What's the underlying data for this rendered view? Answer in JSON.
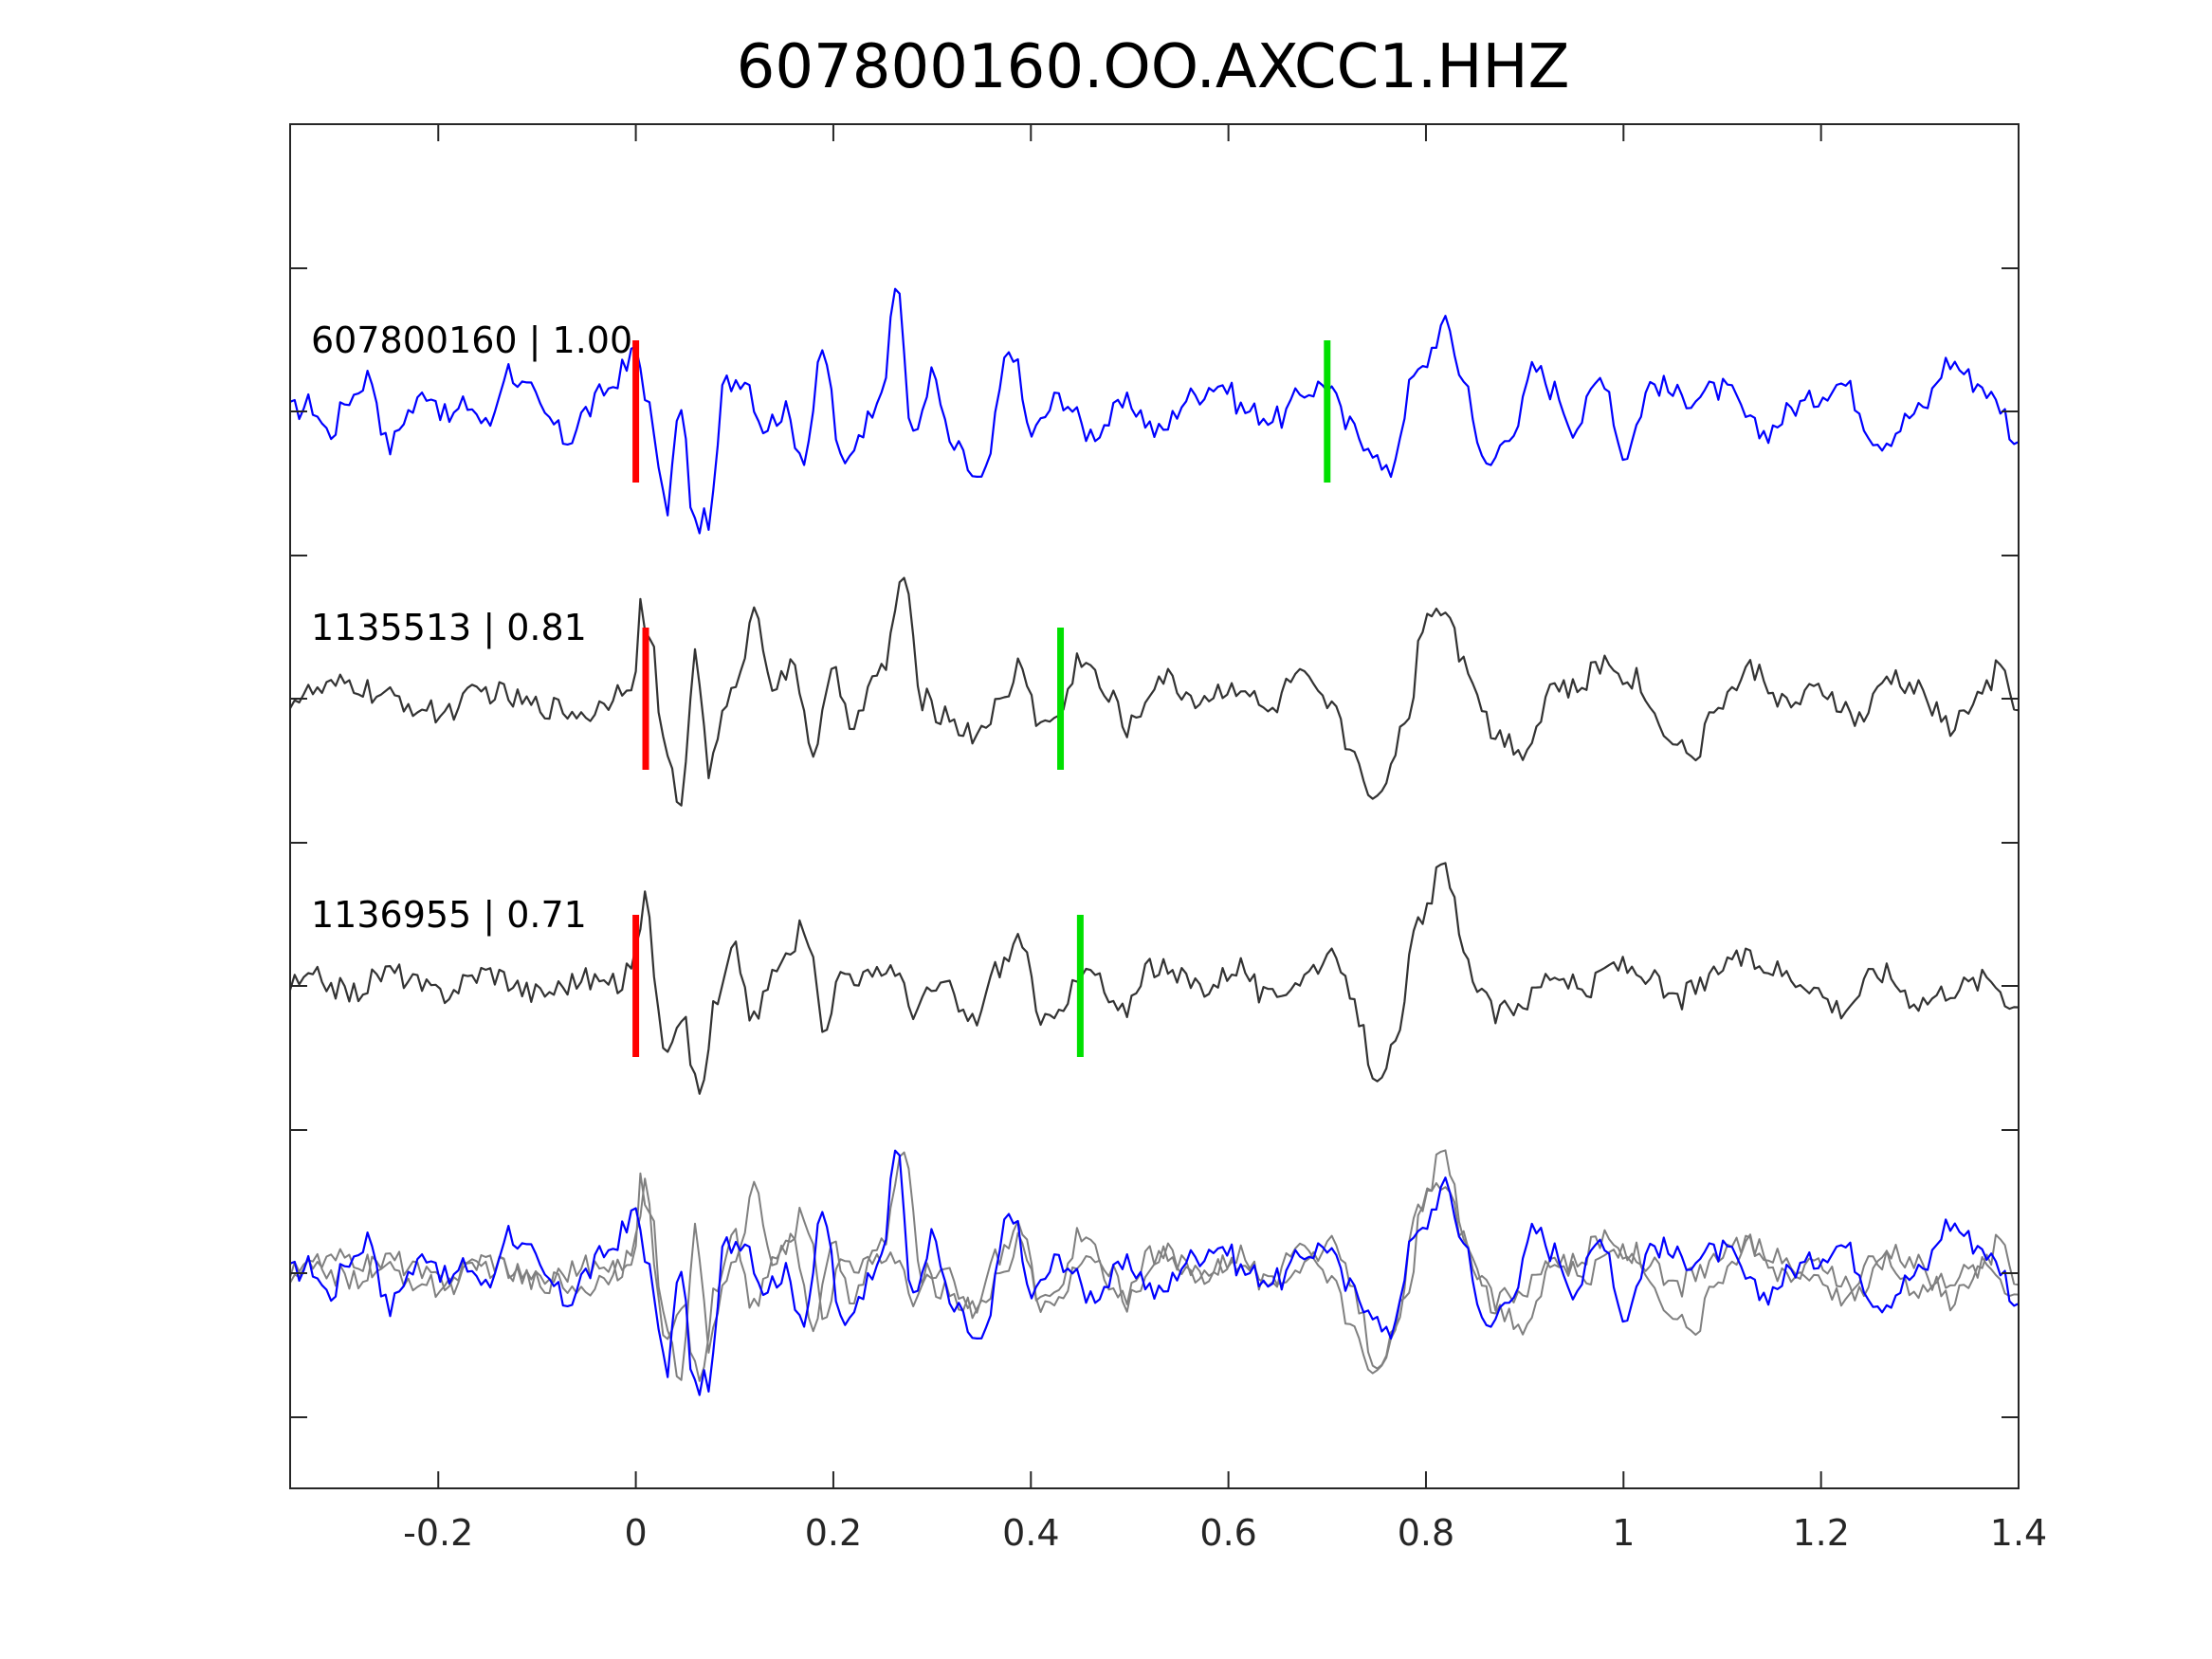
{
  "chart_data": {
    "type": "line",
    "title": "607800160.OO.AXCC1.HHZ",
    "xlabel": "",
    "ylabel": "",
    "xlim": [
      -0.35,
      1.4
    ],
    "x_ticks": [
      "-0.2",
      "0",
      "0.2",
      "0.4",
      "0.6",
      "0.8",
      "1",
      "1.2",
      "1.4"
    ],
    "x_tick_values": [
      -0.2,
      0,
      0.2,
      0.4,
      0.6,
      0.8,
      1.0,
      1.2,
      1.4
    ],
    "grid": false,
    "series": [
      {
        "label": "607800160 | 1.00",
        "color": "#0000ff",
        "p_pick": 0.0,
        "s_pick": 0.7,
        "keypoints": [
          [
            -0.35,
            0.0
          ],
          [
            -0.33,
            0.1
          ],
          [
            -0.31,
            -0.3
          ],
          [
            -0.29,
            0.2
          ],
          [
            -0.27,
            0.5
          ],
          [
            -0.25,
            -0.5
          ],
          [
            -0.23,
            0.0
          ],
          [
            -0.21,
            0.3
          ],
          [
            -0.19,
            -0.1
          ],
          [
            -0.17,
            0.1
          ],
          [
            -0.15,
            -0.2
          ],
          [
            -0.13,
            0.6
          ],
          [
            -0.11,
            0.3
          ],
          [
            -0.09,
            -0.1
          ],
          [
            -0.07,
            -0.4
          ],
          [
            -0.05,
            0.0
          ],
          [
            -0.03,
            0.3
          ],
          [
            -0.01,
            0.6
          ],
          [
            0.0,
            0.9
          ],
          [
            0.01,
            0.3
          ],
          [
            0.02,
            -0.5
          ],
          [
            0.03,
            -1.4
          ],
          [
            0.045,
            0.0
          ],
          [
            0.06,
            -1.6
          ],
          [
            0.075,
            -1.5
          ],
          [
            0.09,
            0.4
          ],
          [
            0.11,
            0.5
          ],
          [
            0.13,
            -0.2
          ],
          [
            0.15,
            0.0
          ],
          [
            0.17,
            -0.6
          ],
          [
            0.19,
            0.8
          ],
          [
            0.21,
            -0.8
          ],
          [
            0.23,
            -0.2
          ],
          [
            0.25,
            0.4
          ],
          [
            0.265,
            1.8
          ],
          [
            0.28,
            -0.4
          ],
          [
            0.3,
            0.5
          ],
          [
            0.32,
            -0.5
          ],
          [
            0.35,
            -1.0
          ],
          [
            0.38,
            0.9
          ],
          [
            0.4,
            -0.3
          ],
          [
            0.43,
            0.2
          ],
          [
            0.46,
            -0.3
          ],
          [
            0.5,
            0.1
          ],
          [
            0.53,
            -0.3
          ],
          [
            0.56,
            0.2
          ],
          [
            0.59,
            0.4
          ],
          [
            0.62,
            0.0
          ],
          [
            0.65,
            -0.1
          ],
          [
            0.68,
            0.3
          ],
          [
            0.7,
            0.4
          ],
          [
            0.72,
            -0.2
          ],
          [
            0.74,
            -0.4
          ],
          [
            0.76,
            -0.9
          ],
          [
            0.79,
            0.5
          ],
          [
            0.82,
            1.2
          ],
          [
            0.84,
            0.4
          ],
          [
            0.86,
            -0.8
          ],
          [
            0.89,
            -0.2
          ],
          [
            0.91,
            0.6
          ],
          [
            0.93,
            0.3
          ],
          [
            0.95,
            -0.2
          ],
          [
            0.98,
            0.5
          ],
          [
            1.0,
            -0.6
          ],
          [
            1.03,
            0.4
          ],
          [
            1.06,
            0.2
          ],
          [
            1.1,
            0.3
          ],
          [
            1.14,
            -0.3
          ],
          [
            1.18,
            0.1
          ],
          [
            1.22,
            0.4
          ],
          [
            1.26,
            -0.4
          ],
          [
            1.3,
            0.0
          ],
          [
            1.33,
            0.7
          ],
          [
            1.36,
            0.4
          ],
          [
            1.38,
            0.1
          ],
          [
            1.4,
            -0.5
          ]
        ]
      },
      {
        "label": "1135513 | 0.81",
        "color": "#333333",
        "p_pick": 0.01,
        "s_pick": 0.43,
        "keypoints": [
          [
            -0.35,
            0.0
          ],
          [
            -0.32,
            0.1
          ],
          [
            -0.29,
            0.2
          ],
          [
            -0.25,
            0.0
          ],
          [
            -0.2,
            -0.2
          ],
          [
            -0.15,
            0.1
          ],
          [
            -0.1,
            -0.1
          ],
          [
            -0.05,
            -0.2
          ],
          [
            0.0,
            0.3
          ],
          [
            0.005,
            1.3
          ],
          [
            0.015,
            0.8
          ],
          [
            0.03,
            -0.8
          ],
          [
            0.045,
            -1.5
          ],
          [
            0.06,
            0.6
          ],
          [
            0.075,
            -1.0
          ],
          [
            0.09,
            -0.2
          ],
          [
            0.11,
            0.6
          ],
          [
            0.12,
            1.3
          ],
          [
            0.14,
            0.2
          ],
          [
            0.16,
            0.4
          ],
          [
            0.18,
            -0.7
          ],
          [
            0.2,
            0.3
          ],
          [
            0.22,
            -0.3
          ],
          [
            0.25,
            0.4
          ],
          [
            0.27,
            1.7
          ],
          [
            0.29,
            0.0
          ],
          [
            0.31,
            -0.2
          ],
          [
            0.34,
            -0.5
          ],
          [
            0.37,
            -0.1
          ],
          [
            0.39,
            0.5
          ],
          [
            0.41,
            -0.4
          ],
          [
            0.43,
            -0.2
          ],
          [
            0.45,
            0.6
          ],
          [
            0.48,
            0.0
          ],
          [
            0.5,
            -0.4
          ],
          [
            0.53,
            0.3
          ],
          [
            0.57,
            0.0
          ],
          [
            0.61,
            0.2
          ],
          [
            0.64,
            -0.2
          ],
          [
            0.67,
            0.3
          ],
          [
            0.7,
            -0.1
          ],
          [
            0.73,
            -0.8
          ],
          [
            0.75,
            -1.5
          ],
          [
            0.78,
            -0.3
          ],
          [
            0.8,
            1.2
          ],
          [
            0.82,
            1.3
          ],
          [
            0.84,
            0.5
          ],
          [
            0.87,
            -0.5
          ],
          [
            0.9,
            -0.7
          ],
          [
            0.93,
            0.2
          ],
          [
            0.95,
            0.1
          ],
          [
            0.98,
            0.5
          ],
          [
            1.01,
            0.3
          ],
          [
            1.04,
            -0.4
          ],
          [
            1.07,
            -0.8
          ],
          [
            1.1,
            0.0
          ],
          [
            1.13,
            0.4
          ],
          [
            1.17,
            -0.1
          ],
          [
            1.2,
            0.1
          ],
          [
            1.24,
            -0.3
          ],
          [
            1.27,
            0.3
          ],
          [
            1.3,
            0.1
          ],
          [
            1.33,
            -0.4
          ],
          [
            1.36,
            0.0
          ],
          [
            1.38,
            0.4
          ],
          [
            1.4,
            -0.2
          ]
        ]
      },
      {
        "label": "1136955 | 0.71",
        "color": "#333333",
        "p_pick": 0.0,
        "s_pick": 0.45,
        "keypoints": [
          [
            -0.35,
            0.0
          ],
          [
            -0.32,
            0.1
          ],
          [
            -0.29,
            -0.1
          ],
          [
            -0.25,
            0.2
          ],
          [
            -0.2,
            -0.1
          ],
          [
            -0.15,
            0.2
          ],
          [
            -0.1,
            -0.1
          ],
          [
            -0.05,
            0.1
          ],
          [
            -0.02,
            0.0
          ],
          [
            0.0,
            0.4
          ],
          [
            0.01,
            1.5
          ],
          [
            0.02,
            -0.1
          ],
          [
            0.03,
            -0.8
          ],
          [
            0.045,
            -0.4
          ],
          [
            0.065,
            -1.5
          ],
          [
            0.08,
            -0.3
          ],
          [
            0.1,
            0.5
          ],
          [
            0.12,
            -0.5
          ],
          [
            0.14,
            0.2
          ],
          [
            0.16,
            0.5
          ],
          [
            0.17,
            0.9
          ],
          [
            0.19,
            -0.5
          ],
          [
            0.21,
            0.2
          ],
          [
            0.24,
            0.1
          ],
          [
            0.26,
            0.3
          ],
          [
            0.28,
            -0.3
          ],
          [
            0.31,
            0.0
          ],
          [
            0.34,
            -0.5
          ],
          [
            0.37,
            0.3
          ],
          [
            0.39,
            0.7
          ],
          [
            0.41,
            -0.6
          ],
          [
            0.43,
            -0.2
          ],
          [
            0.46,
            0.2
          ],
          [
            0.49,
            -0.4
          ],
          [
            0.52,
            0.3
          ],
          [
            0.55,
            0.1
          ],
          [
            0.58,
            0.0
          ],
          [
            0.61,
            0.3
          ],
          [
            0.64,
            -0.2
          ],
          [
            0.67,
            0.1
          ],
          [
            0.7,
            0.4
          ],
          [
            0.72,
            0.0
          ],
          [
            0.75,
            -1.2
          ],
          [
            0.77,
            -0.9
          ],
          [
            0.79,
            0.8
          ],
          [
            0.82,
            1.7
          ],
          [
            0.84,
            0.3
          ],
          [
            0.87,
            -0.4
          ],
          [
            0.9,
            -0.2
          ],
          [
            0.93,
            0.2
          ],
          [
            0.96,
            -0.1
          ],
          [
            0.99,
            0.3
          ],
          [
            1.02,
            0.2
          ],
          [
            1.05,
            -0.2
          ],
          [
            1.08,
            0.0
          ],
          [
            1.11,
            0.4
          ],
          [
            1.14,
            0.3
          ],
          [
            1.18,
            0.1
          ],
          [
            1.22,
            -0.3
          ],
          [
            1.26,
            0.2
          ],
          [
            1.3,
            -0.2
          ],
          [
            1.34,
            0.0
          ],
          [
            1.37,
            0.1
          ],
          [
            1.4,
            -0.3
          ]
        ]
      }
    ],
    "overlay_panel": "all three traces overlaid"
  }
}
